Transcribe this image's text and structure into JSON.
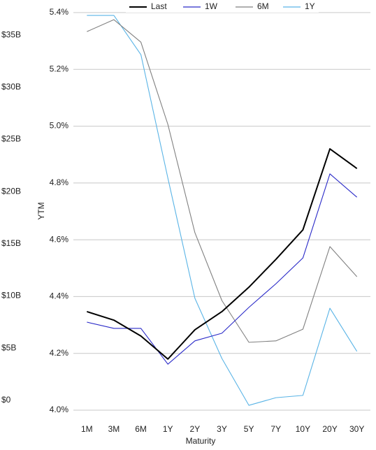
{
  "chart_data": {
    "type": "line",
    "x_label": "Maturity",
    "y2_label": "YTM",
    "categories": [
      "1M",
      "3M",
      "6M",
      "1Y",
      "2Y",
      "3Y",
      "5Y",
      "7Y",
      "10Y",
      "20Y",
      "30Y"
    ],
    "series": [
      {
        "name": "Last",
        "color": "#000000",
        "axis": "y2",
        "values": [
          4.347,
          4.317,
          4.261,
          4.18,
          4.283,
          4.347,
          4.433,
          4.531,
          4.635,
          4.92,
          4.851
        ]
      },
      {
        "name": "1W",
        "color": "#2a2ac8",
        "axis": "y2",
        "values": [
          4.31,
          4.288,
          4.288,
          4.162,
          4.244,
          4.271,
          4.362,
          4.445,
          4.536,
          4.832,
          4.75
        ]
      },
      {
        "name": "6M",
        "color": "#808080",
        "axis": "y2",
        "values": [
          5.333,
          5.375,
          5.296,
          5.006,
          4.625,
          4.386,
          4.239,
          4.244,
          4.285,
          4.576,
          4.47
        ]
      },
      {
        "name": "1Y",
        "color": "#5ab4e6",
        "axis": "y2",
        "values": [
          5.39,
          5.39,
          5.252,
          4.817,
          4.394,
          4.182,
          4.017,
          4.044,
          4.052,
          4.359,
          4.207
        ]
      }
    ],
    "ylim": [
      -940000000,
      37150000000
    ],
    "yticks": [
      {
        "value": 0,
        "label": "$0"
      },
      {
        "value": 5000000000,
        "label": "$5B"
      },
      {
        "value": 10000000000,
        "label": "$10B"
      },
      {
        "value": 15000000000,
        "label": "$15B"
      },
      {
        "value": 20000000000,
        "label": "$20B"
      },
      {
        "value": 25000000000,
        "label": "$25B"
      },
      {
        "value": 30000000000,
        "label": "$30B"
      },
      {
        "value": 35000000000,
        "label": "$35B"
      }
    ],
    "y2lim": [
      4.0,
      5.4
    ],
    "y2ticks": [
      {
        "value": 4.0,
        "label": "4.0%"
      },
      {
        "value": 4.2,
        "label": "4.2%"
      },
      {
        "value": 4.4,
        "label": "4.4%"
      },
      {
        "value": 4.6,
        "label": "4.6%"
      },
      {
        "value": 4.8,
        "label": "4.8%"
      },
      {
        "value": 5.0,
        "label": "5.0%"
      },
      {
        "value": 5.2,
        "label": "5.2%"
      },
      {
        "value": 5.4,
        "label": "5.4%"
      }
    ],
    "grid": true,
    "legend": "top"
  }
}
